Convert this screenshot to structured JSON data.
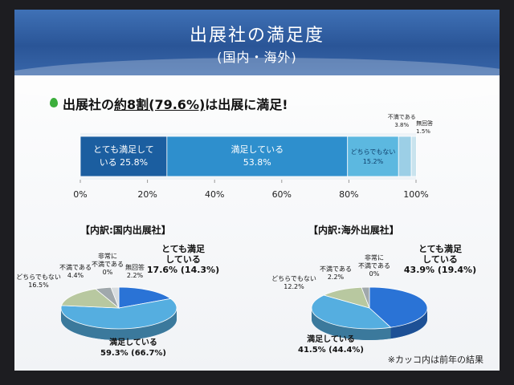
{
  "slide": {
    "title": "出展社の満足度",
    "subtitle": "(国内・海外)",
    "headline_prefix": "出展社の",
    "headline_underlined": "約8割(79.6%)",
    "headline_suffix": "は出展に満足!",
    "note": "※カッコ内は前年の結果"
  },
  "colors": {
    "very_satisfied": "#1b5ea0",
    "satisfied": "#2e8fcd",
    "neutral": "#5cb8e0",
    "dissatisfied": "#9ccfe6",
    "no_answer": "#c9e3ee",
    "pie_very_satisfied": "#2a73d6",
    "pie_satisfied": "#55aee0",
    "pie_neutral": "#b8c8a0",
    "pie_dissatisfied": "#a0a8ac"
  },
  "chart_data": [
    {
      "type": "bar",
      "orientation": "horizontal-stacked",
      "x_ticks": [
        "0%",
        "20%",
        "40%",
        "60%",
        "80%",
        "100%"
      ],
      "xlim": [
        0,
        100
      ],
      "series": [
        {
          "label_line1": "とても満足して",
          "label_line2": "いる 25.8%",
          "value": 25.8
        },
        {
          "label_line1": "満足している",
          "label_line2": "53.8%",
          "value": 53.8
        },
        {
          "label_line1": "どちらでもない",
          "label_line2": "15.2%",
          "value": 15.2
        },
        {
          "label_line1": "不満である",
          "label_line2": "3.8%",
          "value": 3.8
        },
        {
          "label_line1": "無回答",
          "label_line2": "1.5%",
          "value": 1.5
        }
      ]
    },
    {
      "type": "pie",
      "title": "【内訳:国内出展社】",
      "slices": [
        {
          "key": "very_satisfied",
          "line1": "とても満足",
          "line2": "している",
          "line3": "17.6% (14.3%)",
          "value": 17.6
        },
        {
          "key": "satisfied",
          "line1": "満足している",
          "line2": "59.3% (66.7%)",
          "line3": "",
          "value": 59.3
        },
        {
          "key": "neutral",
          "line1": "どちらでもない",
          "line2": "16.5%",
          "line3": "",
          "value": 16.5
        },
        {
          "key": "dissatisfied",
          "line1": "不満である",
          "line2": "4.4%",
          "line3": "",
          "value": 4.4
        },
        {
          "key": "very_dissatisfied",
          "line1": "非常に",
          "line2": "不満である",
          "line3": "0%",
          "value": 0
        },
        {
          "key": "no_answer",
          "line1": "無回答",
          "line2": "2.2%",
          "line3": "",
          "value": 2.2
        }
      ]
    },
    {
      "type": "pie",
      "title": "【内訳:海外出展社】",
      "slices": [
        {
          "key": "very_satisfied",
          "line1": "とても満足",
          "line2": "している",
          "line3": "43.9% (19.4%)",
          "value": 43.9
        },
        {
          "key": "satisfied",
          "line1": "満足している",
          "line2": "41.5% (44.4%)",
          "line3": "",
          "value": 41.5
        },
        {
          "key": "neutral",
          "line1": "どちらでもない",
          "line2": "12.2%",
          "line3": "",
          "value": 12.2
        },
        {
          "key": "dissatisfied",
          "line1": "不満である",
          "line2": "2.2%",
          "line3": "",
          "value": 2.2
        },
        {
          "key": "very_dissatisfied",
          "line1": "非常に",
          "line2": "不満である",
          "line3": "0%",
          "value": 0
        }
      ]
    }
  ]
}
